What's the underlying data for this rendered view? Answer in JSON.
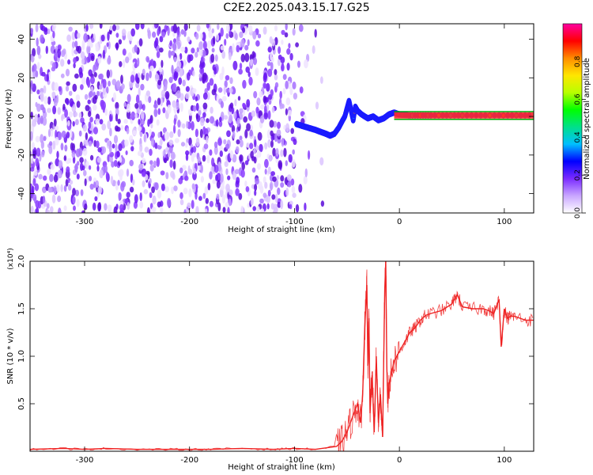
{
  "title": "C2E2.2025.043.15.17.G25",
  "chart_data": [
    {
      "type": "heatmap",
      "xlabel": "Height of straight line (km)",
      "ylabel": "Frequency (Hz)",
      "xlim": [
        -352,
        128
      ],
      "ylim": [
        -50,
        48
      ],
      "xticks": [
        -300,
        -200,
        -100,
        0,
        100
      ],
      "yticks": [
        -40,
        -20,
        0,
        20,
        40
      ],
      "colorbar": {
        "label": "Normalized spectral amplitude",
        "range": [
          0,
          1
        ],
        "ticks": [
          "0.0",
          "0.2",
          "0.4",
          "0.6",
          "0.8"
        ],
        "tick_values": [
          0,
          0.2,
          0.4,
          0.6,
          0.8
        ],
        "colors": [
          "#ffffff",
          "#c9a6ff",
          "#7a2bff",
          "#0000ff",
          "#00bfff",
          "#00e08a",
          "#00ff00",
          "#b8ff00",
          "#ffe600",
          "#ff8c00",
          "#ff0000",
          "#ff00a0"
        ]
      },
      "ridge": {
        "x": [
          -98,
          -92,
          -86,
          -80,
          -75,
          -70,
          -66,
          -62,
          -58,
          -55,
          -52,
          -50,
          -48,
          -46,
          -44,
          -42,
          -40,
          -36,
          -30,
          -25,
          -20,
          -15,
          -10,
          -5,
          0,
          10,
          30,
          60,
          95,
          128
        ],
        "y": [
          -4,
          -5,
          -6,
          -7,
          -8,
          -9,
          -10,
          -9,
          -6,
          -3,
          0,
          4,
          8,
          3,
          -2,
          5,
          3,
          1,
          -1,
          0,
          -2,
          -1,
          1,
          2,
          1,
          0.5,
          0.5,
          0.5,
          0.5,
          0.5
        ]
      },
      "band": {
        "y_low": -1.5,
        "y_high": 2.5,
        "x_start": -5,
        "x_end": 128,
        "color": "#00aa00"
      }
    },
    {
      "type": "line",
      "xlabel": "Height of straight line (km)",
      "ylabel": "SNR (10 * v/v)",
      "y_multiplier": "(x10⁴)",
      "xlim": [
        -352,
        128
      ],
      "ylim": [
        0,
        2.0
      ],
      "xticks": [
        -300,
        -200,
        -100,
        0,
        100
      ],
      "yticks": [
        "0.5",
        "1.0",
        "1.5",
        "2.0"
      ],
      "ytick_values": [
        0.5,
        1.0,
        1.5,
        2.0
      ],
      "series_color": "#ee2222",
      "series": [
        {
          "x": [
            -352,
            -320,
            -300,
            -280,
            -250,
            -220,
            -200,
            -180,
            -150,
            -120,
            -100,
            -80,
            -60,
            -55,
            -50,
            -45,
            -40,
            -37,
            -35,
            -33,
            -31,
            -30,
            -29,
            -28,
            -26,
            -24,
            -22,
            -20,
            -18,
            -16,
            -14,
            -13,
            -12,
            -11,
            -10,
            -8,
            -5,
            0,
            5,
            10,
            15,
            20,
            25,
            30,
            40,
            50,
            55,
            60,
            70,
            80,
            85,
            90,
            95,
            97,
            100,
            103,
            106,
            110,
            120,
            128
          ],
          "y": [
            0.02,
            0.03,
            0.02,
            0.03,
            0.02,
            0.02,
            0.02,
            0.02,
            0.03,
            0.02,
            0.03,
            0.02,
            0.05,
            0.1,
            0.2,
            0.35,
            0.5,
            0.3,
            0.6,
            1.3,
            1.75,
            0.9,
            1.4,
            0.4,
            0.8,
            0.2,
            1.0,
            0.3,
            0.6,
            0.15,
            1.7,
            2.0,
            0.9,
            0.5,
            0.7,
            0.8,
            0.95,
            1.05,
            1.15,
            1.25,
            1.3,
            1.38,
            1.43,
            1.45,
            1.48,
            1.55,
            1.65,
            1.52,
            1.5,
            1.5,
            1.48,
            1.45,
            1.6,
            1.1,
            1.5,
            1.4,
            1.42,
            1.42,
            1.38,
            1.38
          ]
        }
      ]
    }
  ]
}
